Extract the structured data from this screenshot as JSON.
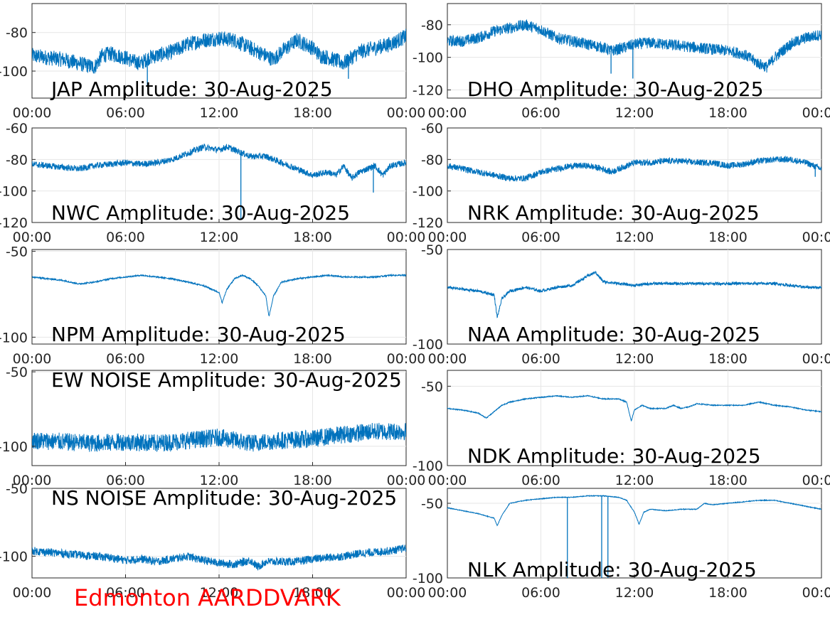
{
  "footer_label": "Edmonton AARDDVARK",
  "colors": {
    "trace": "#0072BD",
    "axis": "#262626",
    "grid": "#e6e6e6",
    "footer": "#ff0000"
  },
  "x_ticks": [
    "00:00",
    "06:00",
    "12:00",
    "18:00",
    "00:00"
  ],
  "chart_data": [
    {
      "type": "line",
      "title": "JAP Amplitude: 30-Aug-2025",
      "xlim": [
        "00:00",
        "24:00"
      ],
      "ylim": [
        -114,
        -65
      ],
      "y_ticks": [
        -80,
        -100
      ],
      "y_tick_labels": [
        "-80",
        "-100"
      ],
      "noise": 8,
      "grid": true,
      "x": [
        0,
        1,
        2,
        3,
        3.5,
        4,
        4.5,
        5,
        6,
        6.5,
        7,
        7.5,
        8,
        9,
        10,
        11,
        12,
        13,
        13.5,
        14,
        14.5,
        15,
        15.5,
        16,
        17,
        18,
        18.5,
        19,
        20,
        21,
        22,
        23,
        24
      ],
      "y": [
        -92,
        -93,
        -94,
        -96,
        -97,
        -98,
        -92,
        -91,
        -93,
        -95,
        -96,
        -93,
        -92,
        -90,
        -86,
        -84,
        -83,
        -84,
        -86,
        -88,
        -90,
        -92,
        -94,
        -90,
        -84,
        -88,
        -92,
        -93,
        -96,
        -90,
        -88,
        -86,
        -82
      ],
      "spikes": [
        [
          7.4,
          -108
        ],
        [
          20.3,
          -104
        ]
      ]
    },
    {
      "type": "line",
      "title": "DHO Amplitude: 30-Aug-2025",
      "xlim": [
        "00:00",
        "24:00"
      ],
      "ylim": [
        -125,
        -67
      ],
      "y_ticks": [
        -80,
        -100,
        -120
      ],
      "y_tick_labels": [
        "-80",
        "-100",
        "-120"
      ],
      "noise": 7,
      "grid": true,
      "x": [
        0,
        1,
        2,
        3,
        4,
        5,
        6,
        7,
        8,
        9,
        10,
        10.5,
        11,
        12,
        13,
        14,
        15,
        16,
        17,
        18,
        19,
        20,
        20.5,
        21,
        22,
        23,
        24
      ],
      "y": [
        -90,
        -90,
        -88,
        -84,
        -82,
        -80,
        -83,
        -88,
        -90,
        -92,
        -94,
        -96,
        -95,
        -92,
        -91,
        -92,
        -93,
        -94,
        -95,
        -96,
        -98,
        -104,
        -106,
        -100,
        -92,
        -88,
        -86
      ],
      "spikes": [
        [
          10.5,
          -110
        ],
        [
          11.9,
          -113
        ]
      ]
    },
    {
      "type": "line",
      "title": "NWC Amplitude: 30-Aug-2025",
      "xlim": [
        "00:00",
        "24:00"
      ],
      "ylim": [
        -120,
        -60
      ],
      "y_ticks": [
        -60,
        -80,
        -100,
        -120
      ],
      "y_tick_labels": [
        "-60",
        "-80",
        "-100",
        "-120"
      ],
      "noise": 4,
      "grid": true,
      "x": [
        0,
        1,
        2,
        3,
        4,
        5,
        6,
        7,
        8,
        9,
        10,
        11,
        12,
        12.5,
        13,
        14,
        15,
        16,
        17,
        18,
        19,
        19.5,
        20,
        20.5,
        21,
        22,
        22.5,
        23,
        24
      ],
      "y": [
        -83,
        -84,
        -85,
        -86,
        -84,
        -83,
        -82,
        -83,
        -82,
        -80,
        -76,
        -72,
        -74,
        -72,
        -74,
        -78,
        -78,
        -82,
        -86,
        -90,
        -88,
        -90,
        -84,
        -92,
        -88,
        -84,
        -90,
        -84,
        -82
      ],
      "spikes": [
        [
          13.4,
          -118
        ],
        [
          21.9,
          -101
        ]
      ]
    },
    {
      "type": "line",
      "title": "NRK Amplitude: 30-Aug-2025",
      "xlim": [
        "00:00",
        "24:00"
      ],
      "ylim": [
        -120,
        -60
      ],
      "y_ticks": [
        -60,
        -80,
        -100,
        -120
      ],
      "y_tick_labels": [
        "-60",
        "-80",
        "-100",
        "-120"
      ],
      "noise": 4,
      "grid": true,
      "x": [
        0,
        1,
        2,
        3,
        4,
        5,
        6,
        7,
        8,
        9,
        10,
        10.5,
        11,
        12,
        13,
        14,
        15,
        16,
        17,
        18,
        19,
        20,
        21,
        22,
        23,
        24
      ],
      "y": [
        -84,
        -86,
        -88,
        -90,
        -92,
        -92,
        -88,
        -86,
        -84,
        -84,
        -86,
        -88,
        -86,
        -82,
        -82,
        -81,
        -81,
        -82,
        -82,
        -84,
        -83,
        -81,
        -80,
        -80,
        -82,
        -86
      ],
      "spikes": [
        [
          23.6,
          -91
        ]
      ]
    },
    {
      "type": "line",
      "title": "NPM Amplitude: 30-Aug-2025",
      "xlim": [
        "00:00",
        "24:00"
      ],
      "ylim": [
        -104,
        -49
      ],
      "y_ticks": [
        -50,
        -100
      ],
      "y_tick_labels": [
        "-50",
        "-100"
      ],
      "noise": 0.8,
      "grid": true,
      "x": [
        0,
        1,
        2,
        3,
        4,
        5,
        6,
        7,
        8,
        9,
        10,
        11,
        11.5,
        12,
        12.2,
        12.5,
        13,
        13.5,
        14,
        14.5,
        15,
        15.2,
        15.5,
        16,
        17,
        18,
        19,
        20,
        21,
        22,
        23,
        24
      ],
      "y": [
        -65,
        -66,
        -67,
        -69,
        -68,
        -66,
        -65,
        -64,
        -65,
        -66,
        -68,
        -70,
        -72,
        -74,
        -80,
        -72,
        -66,
        -64,
        -66,
        -70,
        -76,
        -88,
        -76,
        -68,
        -66,
        -65,
        -64,
        -65,
        -65,
        -65,
        -64,
        -64
      ],
      "spikes": []
    },
    {
      "type": "line",
      "title": "NAA Amplitude: 30-Aug-2025",
      "xlim": [
        "00:00",
        "24:00"
      ],
      "ylim": [
        -100,
        -50
      ],
      "y_ticks": [
        -50,
        -100
      ],
      "y_tick_labels": [
        "-50",
        "-100"
      ],
      "noise": 1.5,
      "grid": true,
      "x": [
        0,
        1,
        2,
        3,
        3.2,
        3.5,
        4,
        5,
        6,
        7,
        8,
        9,
        9.5,
        10,
        11,
        12,
        13,
        14,
        15,
        16,
        17,
        18,
        19,
        20,
        21,
        22,
        23,
        24
      ],
      "y": [
        -70,
        -71,
        -72,
        -74,
        -86,
        -76,
        -72,
        -70,
        -72,
        -70,
        -69,
        -64,
        -62,
        -67,
        -68,
        -69,
        -68,
        -68,
        -68,
        -68,
        -68,
        -68,
        -68,
        -68,
        -68,
        -69,
        -70,
        -70
      ],
      "spikes": []
    },
    {
      "type": "line",
      "title": "EW NOISE Amplitude: 30-Aug-2025",
      "xlim": [
        "00:00",
        "24:00"
      ],
      "ylim": [
        -113,
        -49
      ],
      "y_ticks": [
        -50,
        -100
      ],
      "y_tick_labels": [
        "-50",
        "-100"
      ],
      "noise": 12,
      "grid": true,
      "x": [
        0,
        2,
        4,
        6,
        8,
        10,
        12,
        14,
        16,
        18,
        20,
        22,
        24
      ],
      "y": [
        -96,
        -97,
        -98,
        -97,
        -98,
        -96,
        -94,
        -98,
        -96,
        -95,
        -92,
        -90,
        -90
      ],
      "spikes": []
    },
    {
      "type": "line",
      "title": "NDK Amplitude: 30-Aug-2025",
      "xlim": [
        "00:00",
        "24:00"
      ],
      "ylim": [
        -100,
        -40
      ],
      "y_ticks": [
        -50,
        -100
      ],
      "y_tick_labels": [
        "-50",
        "-100"
      ],
      "noise": 0.6,
      "grid": true,
      "x": [
        0,
        1,
        2,
        2.5,
        3,
        3.5,
        4,
        5,
        6,
        7,
        8,
        9,
        10,
        11,
        11.5,
        11.8,
        12,
        12.5,
        13,
        14,
        14.5,
        15,
        15.5,
        16,
        17,
        18,
        19,
        19.5,
        20,
        21,
        22,
        23,
        24
      ],
      "y": [
        -64,
        -65,
        -67,
        -70,
        -66,
        -62,
        -60,
        -58,
        -57,
        -56,
        -57,
        -56,
        -58,
        -58,
        -60,
        -72,
        -65,
        -62,
        -64,
        -64,
        -62,
        -64,
        -63,
        -61,
        -62,
        -62,
        -62,
        -61,
        -60,
        -62,
        -63,
        -65,
        -66
      ],
      "spikes": []
    },
    {
      "type": "line",
      "title": "NS NOISE Amplitude: 30-Aug-2025",
      "xlim": [
        "00:00",
        "24:00"
      ],
      "ylim": [
        -116,
        -50
      ],
      "y_ticks": [
        -50,
        -100
      ],
      "y_tick_labels": [
        "-50",
        "-100"
      ],
      "noise": 6,
      "grid": true,
      "x": [
        0,
        1,
        2,
        3,
        4,
        5,
        6,
        7,
        8,
        9,
        10,
        11,
        12,
        13,
        14,
        14.5,
        15,
        16,
        17,
        18,
        19,
        20,
        21,
        22,
        23,
        24
      ],
      "y": [
        -96,
        -97,
        -98,
        -99,
        -100,
        -101,
        -103,
        -102,
        -104,
        -102,
        -100,
        -103,
        -105,
        -106,
        -103,
        -108,
        -104,
        -104,
        -104,
        -102,
        -101,
        -100,
        -98,
        -97,
        -96,
        -94
      ],
      "spikes": []
    },
    {
      "type": "line",
      "title": "NLK Amplitude: 30-Aug-2025",
      "xlim": [
        "00:00",
        "24:00"
      ],
      "ylim": [
        -100,
        -40
      ],
      "y_ticks": [
        -50,
        -100
      ],
      "y_tick_labels": [
        "-50",
        "-100"
      ],
      "noise": 0.5,
      "grid": true,
      "x": [
        0,
        1,
        2,
        3,
        3.2,
        3.5,
        4,
        5,
        6,
        7,
        8,
        9,
        10,
        11,
        11.5,
        12,
        12.3,
        12.6,
        13,
        14,
        15,
        16,
        16.5,
        17,
        18,
        19,
        20,
        21,
        22,
        23,
        24
      ],
      "y": [
        -53,
        -55,
        -57,
        -60,
        -65,
        -58,
        -50,
        -48,
        -47,
        -46,
        -46,
        -45,
        -45,
        -46,
        -48,
        -56,
        -64,
        -56,
        -54,
        -55,
        -54,
        -54,
        -50,
        -51,
        -50,
        -49,
        -48,
        -48,
        -50,
        -52,
        -54
      ],
      "spikes": [
        [
          7.7,
          -100
        ],
        [
          9.9,
          -100
        ],
        [
          10.3,
          -100
        ]
      ]
    }
  ]
}
